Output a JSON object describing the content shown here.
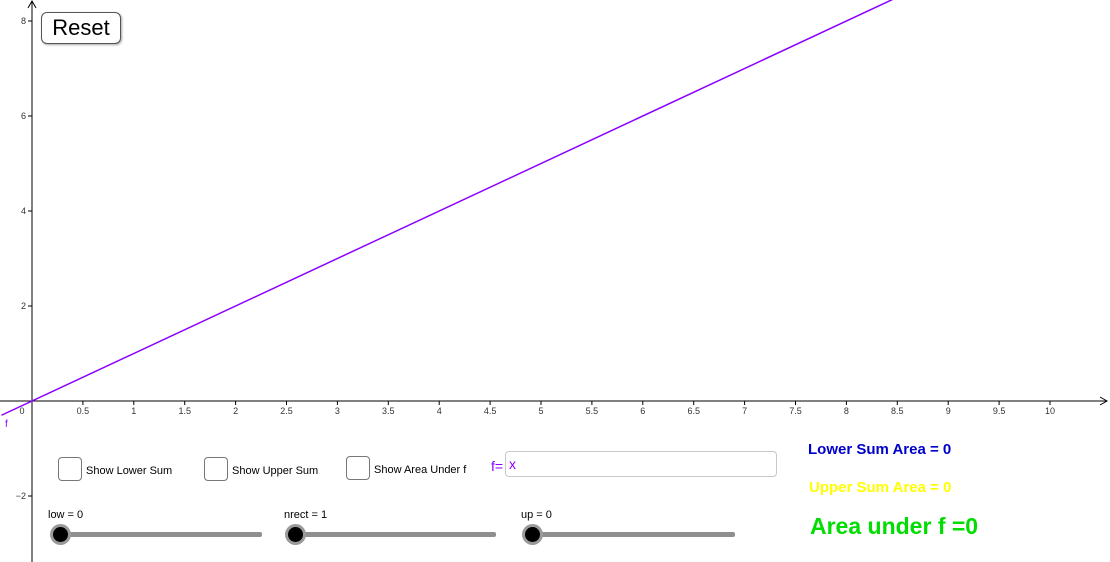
{
  "buttons": {
    "reset_label": "Reset"
  },
  "graph": {
    "function_label": "f",
    "line_color": "#8b00ff",
    "axis_color": "#000000",
    "x_ticks": [
      "0.5",
      "1",
      "1.5",
      "2",
      "2.5",
      "3",
      "3.5",
      "4",
      "4.5",
      "5",
      "5.5",
      "6",
      "6.5",
      "7",
      "7.5",
      "8",
      "8.5",
      "9",
      "9.5",
      "10"
    ],
    "y_ticks": [
      "8",
      "6",
      "4",
      "2",
      "−2"
    ],
    "origin_label": "0"
  },
  "checkboxes": {
    "lower": "Show Lower Sum",
    "upper": "Show Upper Sum",
    "area": "Show Area Under f"
  },
  "input_bar": {
    "label": "f=",
    "value": "x"
  },
  "results": {
    "lower": "Lower Sum Area = 0",
    "upper": "Upper Sum Area = 0",
    "area": "Area under f =0",
    "lower_color": "#0000cc",
    "upper_color": "#ffff00",
    "area_color": "#00dd00"
  },
  "sliders": {
    "low_label": "low = 0",
    "low_value": 0,
    "nrect_label": "nrect = 1",
    "nrect_value": 1,
    "up_label": "up = 0",
    "up_value": 0
  }
}
